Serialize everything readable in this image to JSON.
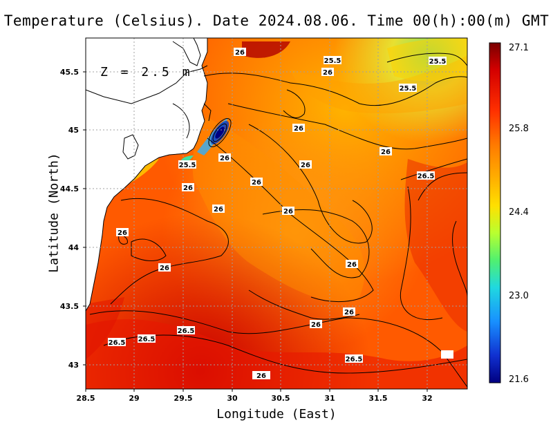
{
  "title": "Temperature (Celsius). Date 2024.08.06. Time 00(h):00(m) GMT",
  "xlabel": "Longitude (East)",
  "ylabel": "Latitude (North)",
  "depth_label": "Z = 2.5 m",
  "x_ticks": [
    "28.5",
    "29",
    "29.5",
    "30",
    "30.5",
    "31",
    "31.5",
    "32"
  ],
  "y_ticks": [
    "43",
    "43.5",
    "44",
    "44.5",
    "45",
    "45.5"
  ],
  "colorbar": {
    "max": "27.1",
    "labels": [
      "27.1",
      "25.8",
      "24.4",
      "23.0",
      "21.6"
    ],
    "min": "21.6",
    "colors": [
      "#8b0000",
      "#e60000",
      "#ff4500",
      "#ff8c00",
      "#ffd700",
      "#adff2f",
      "#40e0d0",
      "#1e90ff",
      "#0000cd",
      "#00008b"
    ]
  },
  "contour_labels": [
    "26",
    "25.5",
    "25.5",
    "25.5",
    "26",
    "26",
    "26",
    "26",
    "25.5",
    "26",
    "26.5",
    "26",
    "26",
    "26",
    "26",
    "26",
    "26",
    "26",
    "26",
    "26",
    "26.5",
    "26.5",
    "26.5",
    "26.5",
    "26"
  ],
  "chart_data": {
    "type": "heatmap",
    "title": "Temperature (Celsius). Date 2024.08.06. Time 00(h):00(m) GMT",
    "xlabel": "Longitude (East)",
    "ylabel": "Latitude (North)",
    "xlim": [
      28.5,
      32.4
    ],
    "ylim": [
      42.8,
      45.8
    ],
    "color_range": [
      21.6,
      27.1
    ],
    "contour_levels": [
      25.5,
      26,
      26.5
    ],
    "grid": true,
    "legend_placement": "right colorbar",
    "annotation": "Z = 2.5 m"
  }
}
